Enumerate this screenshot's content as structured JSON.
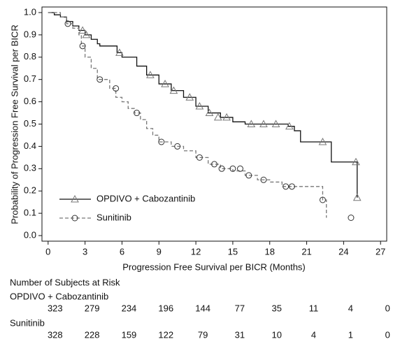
{
  "chart_data": {
    "type": "step",
    "xlabel": "Progression Free Survival per BICR (Months)",
    "ylabel": "Probability of Progression Free Survival per BICR",
    "xlim": [
      -0.5,
      27.5
    ],
    "ylim": [
      -0.025,
      1.025
    ],
    "xticks": [
      0,
      3,
      6,
      9,
      12,
      15,
      18,
      21,
      24,
      27
    ],
    "yticks": [
      {
        "value": 0,
        "label": "0.0"
      },
      0.1,
      0.2,
      0.3,
      0.4,
      0.5,
      0.6,
      0.7,
      0.8,
      0.9,
      {
        "value": 1,
        "label": "1.0"
      }
    ],
    "legend": "lower left",
    "series": [
      {
        "name": "OPDIVO + Cabozantinib",
        "color": "#111111",
        "dash": false,
        "marker": "triangle",
        "x": [
          0,
          0.5,
          1,
          1.5,
          2,
          2.5,
          3,
          3.5,
          4,
          4.2,
          5.6,
          6,
          7.2,
          8,
          9,
          10,
          11,
          12,
          13,
          14,
          15,
          16,
          19.5,
          20,
          20.5,
          23,
          25.1
        ],
        "values": [
          1.0,
          0.99,
          0.98,
          0.96,
          0.94,
          0.92,
          0.9,
          0.88,
          0.86,
          0.85,
          0.82,
          0.8,
          0.76,
          0.72,
          0.68,
          0.65,
          0.62,
          0.58,
          0.55,
          0.53,
          0.51,
          0.5,
          0.49,
          0.47,
          0.42,
          0.33,
          0.17
        ],
        "censor_x": [
          2.8,
          3.1,
          5.8,
          8.3,
          9.5,
          10.2,
          11.5,
          12.3,
          13.1,
          13.8,
          14.5,
          16.5,
          17.5,
          18.5,
          19.6,
          22.3,
          25,
          25.1
        ],
        "censor_values": [
          0.92,
          0.9,
          0.82,
          0.72,
          0.68,
          0.65,
          0.62,
          0.58,
          0.55,
          0.53,
          0.53,
          0.5,
          0.5,
          0.5,
          0.49,
          0.42,
          0.33,
          0.17
        ]
      },
      {
        "name": "Sunitinib",
        "color": "#777777",
        "dash": true,
        "marker": "circle",
        "x": [
          0,
          1,
          1.5,
          2,
          2.5,
          2.7,
          3,
          3.5,
          4,
          5,
          5.5,
          6,
          6.5,
          7,
          7.5,
          8,
          8.5,
          9,
          10,
          11,
          12,
          13,
          14,
          15,
          16,
          17,
          18,
          19,
          22.3,
          22.6
        ],
        "values": [
          1.0,
          0.98,
          0.95,
          0.93,
          0.9,
          0.85,
          0.8,
          0.75,
          0.7,
          0.66,
          0.62,
          0.6,
          0.57,
          0.55,
          0.52,
          0.48,
          0.45,
          0.42,
          0.4,
          0.38,
          0.35,
          0.32,
          0.3,
          0.29,
          0.27,
          0.25,
          0.24,
          0.22,
          0.16,
          0.08
        ],
        "censor_x": [
          1.6,
          2.8,
          4.2,
          5.5,
          7.2,
          9.2,
          10.5,
          12.3,
          13.5,
          14.1,
          15,
          15.6,
          16.3,
          17.5,
          19.3,
          19.8,
          22.3,
          24.6
        ],
        "censor_values": [
          0.95,
          0.85,
          0.7,
          0.66,
          0.55,
          0.42,
          0.4,
          0.35,
          0.32,
          0.3,
          0.3,
          0.3,
          0.27,
          0.25,
          0.22,
          0.22,
          0.16,
          0.08
        ]
      }
    ],
    "risk_table": {
      "title": "Number of Subjects at Risk",
      "groups": [
        {
          "name": "OPDIVO + Cabozantinib",
          "counts": [
            "323",
            "279",
            "234",
            "196",
            "144",
            "77",
            "35",
            "11",
            "4",
            "0"
          ]
        },
        {
          "name": "Sunitinib",
          "counts": [
            "328",
            "228",
            "159",
            "122",
            "79",
            "31",
            "10",
            "4",
            "1",
            "0"
          ]
        }
      ]
    }
  }
}
